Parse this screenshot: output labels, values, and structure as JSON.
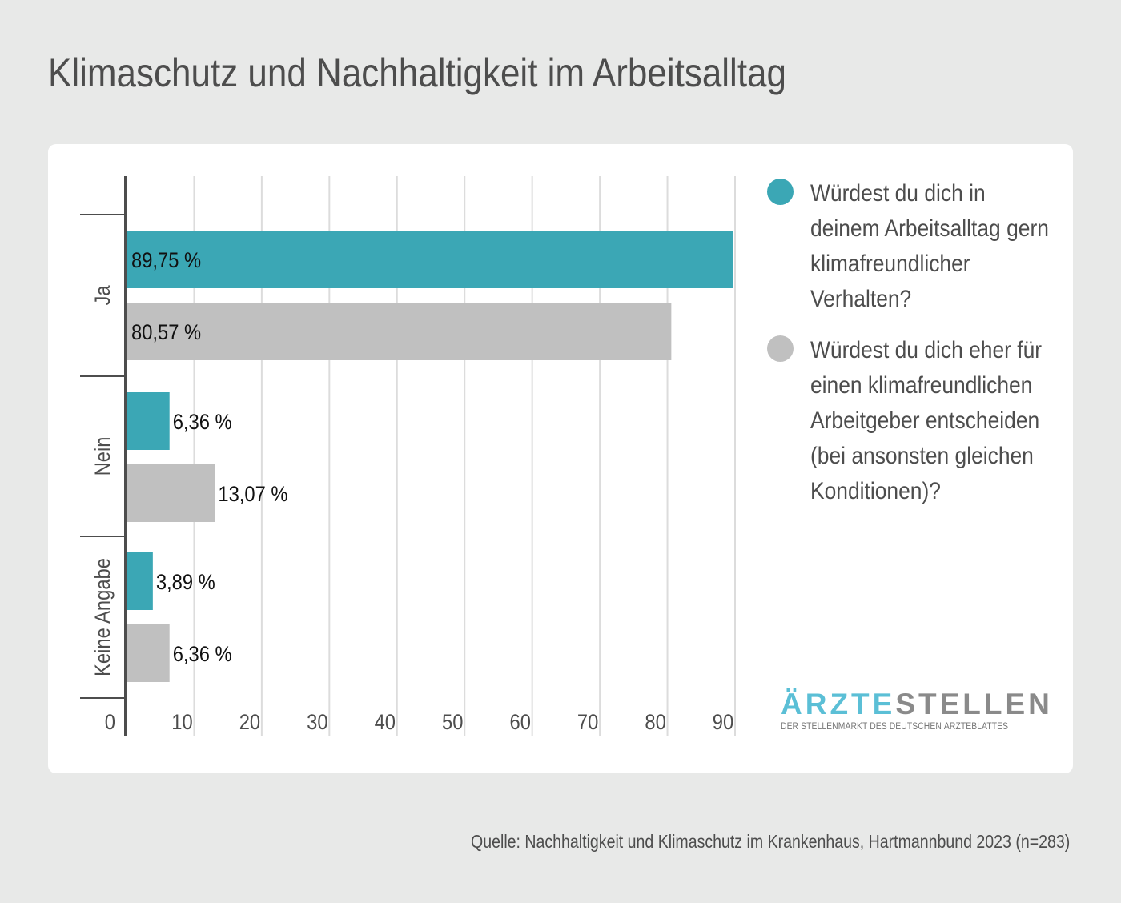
{
  "title": "Klimaschutz und Nachhaltigkeit im Arbeitsalltag",
  "chart_data": {
    "type": "bar",
    "orientation": "horizontal",
    "categories": [
      "Ja",
      "Nein",
      "Keine Angabe"
    ],
    "series": [
      {
        "name": "Würdest du dich in deinem Arbeitsalltag gern klimafreundlicher Verhalten?",
        "color": "#3ba7b5",
        "values": [
          89.75,
          6.36,
          3.89
        ],
        "labels": [
          "89,75 %",
          "6,36 %",
          "3,89 %"
        ]
      },
      {
        "name": "Würdest du dich eher für einen klimafreundlichen Arbeitgeber entscheiden (bei ansonsten gleichen Konditionen)?",
        "color": "#c0c0c0",
        "values": [
          80.57,
          13.07,
          6.36
        ],
        "labels": [
          "80,57 %",
          "13,07 %",
          "6,36 %"
        ]
      }
    ],
    "xlim": [
      0,
      90
    ],
    "xticks": [
      "0",
      "10",
      "20",
      "30",
      "40",
      "50",
      "60",
      "70",
      "80",
      "90"
    ],
    "grid": true,
    "legend_position": "right"
  },
  "logo": {
    "part1": "ÄRZTE",
    "part2": "STELLEN",
    "tagline": "DER STELLENMARKT DES DEUTSCHEN ÄRZTEBLATTES",
    "color1": "#5bbfd6",
    "color2": "#8a8a8a"
  },
  "source": "Quelle:  Nachhaltigkeit und Klimaschutz im Krankenhaus, Hartmannbund 2023 (n=283)"
}
